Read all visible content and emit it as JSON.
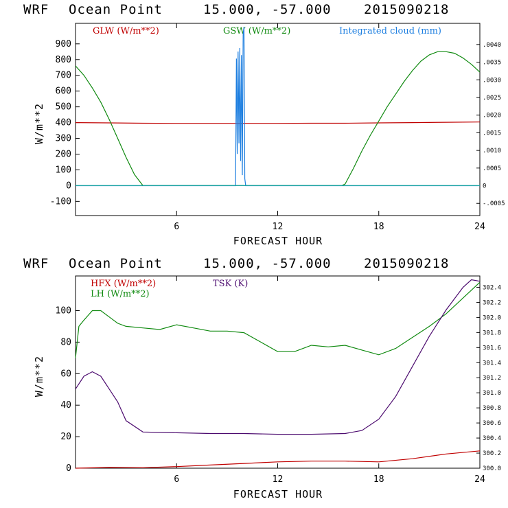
{
  "chart_data": [
    {
      "type": "line",
      "header": {
        "model": "WRF",
        "location": "Ocean Point",
        "coords": "15.000, -57.000",
        "date": "2015090218"
      },
      "xlabel": "FORECAST HOUR",
      "ylabel": "W/m**2",
      "xlim": [
        0,
        24
      ],
      "ylim": [
        -190,
        1030
      ],
      "xticks": [
        "6",
        "12",
        "18",
        "24"
      ],
      "xtick_values": [
        6,
        12,
        18,
        24
      ],
      "yticks": [
        "-100",
        "0",
        "100",
        "200",
        "300",
        "400",
        "500",
        "600",
        "700",
        "800",
        "900"
      ],
      "ytick_values": [
        -100,
        0,
        100,
        200,
        300,
        400,
        500,
        600,
        700,
        800,
        900
      ],
      "y2lim": [
        -0.0008458,
        0.0046
      ],
      "y2ticks": [
        "-.0005",
        "0",
        ".0005",
        ".0010",
        ".0015",
        ".0020",
        ".0025",
        ".0030",
        ".0035",
        ".0040"
      ],
      "y2tick_values": [
        -0.0005,
        0,
        0.0005,
        0.001,
        0.0015,
        0.002,
        0.0025,
        0.003,
        0.0035,
        0.004
      ],
      "series": [
        {
          "name": "GLW (W/m**2)",
          "color": "#c00000",
          "axis": "left",
          "x": [
            0,
            2,
            4,
            6,
            8,
            10,
            12,
            14,
            16,
            18,
            20,
            22,
            24
          ],
          "y": [
            400,
            398,
            396,
            395,
            395,
            395,
            395,
            396,
            396,
            398,
            400,
            402,
            404
          ]
        },
        {
          "name": "GSW (W/m**2)",
          "color": "#108a10",
          "axis": "left",
          "x": [
            0,
            0.5,
            1,
            1.5,
            2,
            2.5,
            3,
            3.5,
            4,
            4.2,
            15.8,
            16,
            16.5,
            17,
            17.5,
            18,
            18.5,
            19,
            19.5,
            20,
            20.5,
            21,
            21.5,
            22,
            22.5,
            23,
            23.5,
            24
          ],
          "y": [
            760,
            700,
            620,
            530,
            420,
            300,
            180,
            70,
            0,
            0,
            0,
            10,
            110,
            220,
            320,
            410,
            500,
            580,
            660,
            730,
            790,
            830,
            850,
            850,
            840,
            810,
            770,
            720
          ]
        },
        {
          "name": "Integrated cloud (mm)",
          "color": "#1e7fe0",
          "axis": "right",
          "x": [
            0,
            9.5,
            9.55,
            9.6,
            9.65,
            9.7,
            9.75,
            9.8,
            9.85,
            9.9,
            9.95,
            10.0,
            10.05,
            10.1,
            24
          ],
          "y": [
            0,
            0,
            0.0036,
            0.0009,
            0.0038,
            0.0012,
            0.0039,
            0.0007,
            0.0037,
            0.0003,
            0.0043,
            0.0045,
            0.0002,
            0,
            0
          ]
        }
      ]
    },
    {
      "type": "line",
      "header": {
        "model": "WRF",
        "location": "Ocean Point",
        "coords": "15.000, -57.000",
        "date": "2015090218"
      },
      "xlabel": "FORECAST HOUR",
      "ylabel": "W/m**2",
      "xlim": [
        0,
        24
      ],
      "ylim": [
        0,
        122
      ],
      "xticks": [
        "6",
        "12",
        "18",
        "24"
      ],
      "xtick_values": [
        6,
        12,
        18,
        24
      ],
      "yticks": [
        "0",
        "20",
        "40",
        "60",
        "80",
        "100"
      ],
      "ytick_values": [
        0,
        20,
        40,
        60,
        80,
        100
      ],
      "y2lim": [
        300.0,
        302.55
      ],
      "y2ticks": [
        "300.0",
        "300.2",
        "300.4",
        "300.6",
        "300.8",
        "301.0",
        "301.2",
        "301.4",
        "301.6",
        "301.8",
        "302.0",
        "302.2",
        "302.4"
      ],
      "y2tick_values": [
        300.0,
        300.2,
        300.4,
        300.6,
        300.8,
        301.0,
        301.2,
        301.4,
        301.6,
        301.8,
        302.0,
        302.2,
        302.4
      ],
      "series": [
        {
          "name": "HFX (W/m**2)",
          "color": "#c00000",
          "axis": "left",
          "x": [
            0,
            2,
            4,
            6,
            8,
            10,
            12,
            14,
            16,
            18,
            20,
            22,
            24
          ],
          "y": [
            0,
            0.5,
            0.3,
            1,
            2,
            3,
            4,
            4.5,
            4.5,
            4,
            6,
            9,
            11
          ]
        },
        {
          "name": "LH (W/m**2)",
          "color": "#108a10",
          "axis": "left",
          "x": [
            0,
            0.2,
            0.5,
            1,
            1.5,
            2,
            2.5,
            3,
            4,
            5,
            6,
            7,
            8,
            9,
            10,
            11,
            12,
            13,
            14,
            15,
            16,
            17,
            18,
            19,
            20,
            21,
            22,
            23,
            24
          ],
          "y": [
            70,
            90,
            94,
            100,
            100,
            96,
            92,
            90,
            89,
            88,
            91,
            89,
            87,
            87,
            86,
            80,
            74,
            74,
            78,
            77,
            78,
            75,
            72,
            76,
            83,
            90,
            98,
            108,
            118
          ],
          "note": "values in left-axis units"
        },
        {
          "name": "TSK (K)",
          "color": "#4b0a6e",
          "axis": "right",
          "x": [
            0,
            0.5,
            1,
            1.5,
            2,
            2.5,
            3,
            4,
            6,
            8,
            10,
            12,
            14,
            16,
            17,
            18,
            19,
            20,
            21,
            22,
            23,
            23.5,
            24
          ],
          "y": [
            301.05,
            301.22,
            301.28,
            301.22,
            301.05,
            300.88,
            300.63,
            300.48,
            300.47,
            300.46,
            300.46,
            300.45,
            300.45,
            300.46,
            300.5,
            300.65,
            300.95,
            301.35,
            301.75,
            302.1,
            302.4,
            302.5,
            302.48
          ]
        }
      ]
    }
  ]
}
